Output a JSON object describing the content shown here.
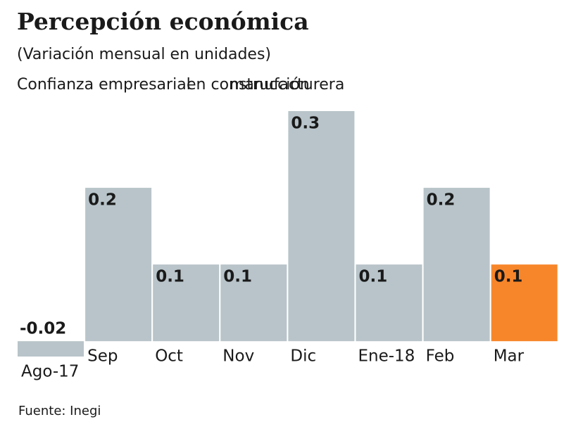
{
  "chart_data": {
    "type": "bar",
    "title": "Percepción económica",
    "subtitle": "(Variación mensual en unidades)",
    "series_label": "Confianza empresarial",
    "series_label_overlaps": [
      "en construcción",
      "manufacturera"
    ],
    "source": "Fuente: Inegi",
    "categories": [
      "Ago-17",
      "Sep",
      "Oct",
      "Nov",
      "Dic",
      "Ene-18",
      "Feb",
      "Mar"
    ],
    "values": [
      -0.02,
      0.2,
      0.1,
      0.1,
      0.3,
      0.1,
      0.2,
      0.1
    ],
    "colors": [
      "#b8c4c9",
      "#b8c4c9",
      "#b8c4c9",
      "#b8c4c9",
      "#b8c4c9",
      "#b8c4c9",
      "#b8c4c9",
      "#f7862b"
    ],
    "ylim": [
      -0.02,
      0.3
    ]
  }
}
